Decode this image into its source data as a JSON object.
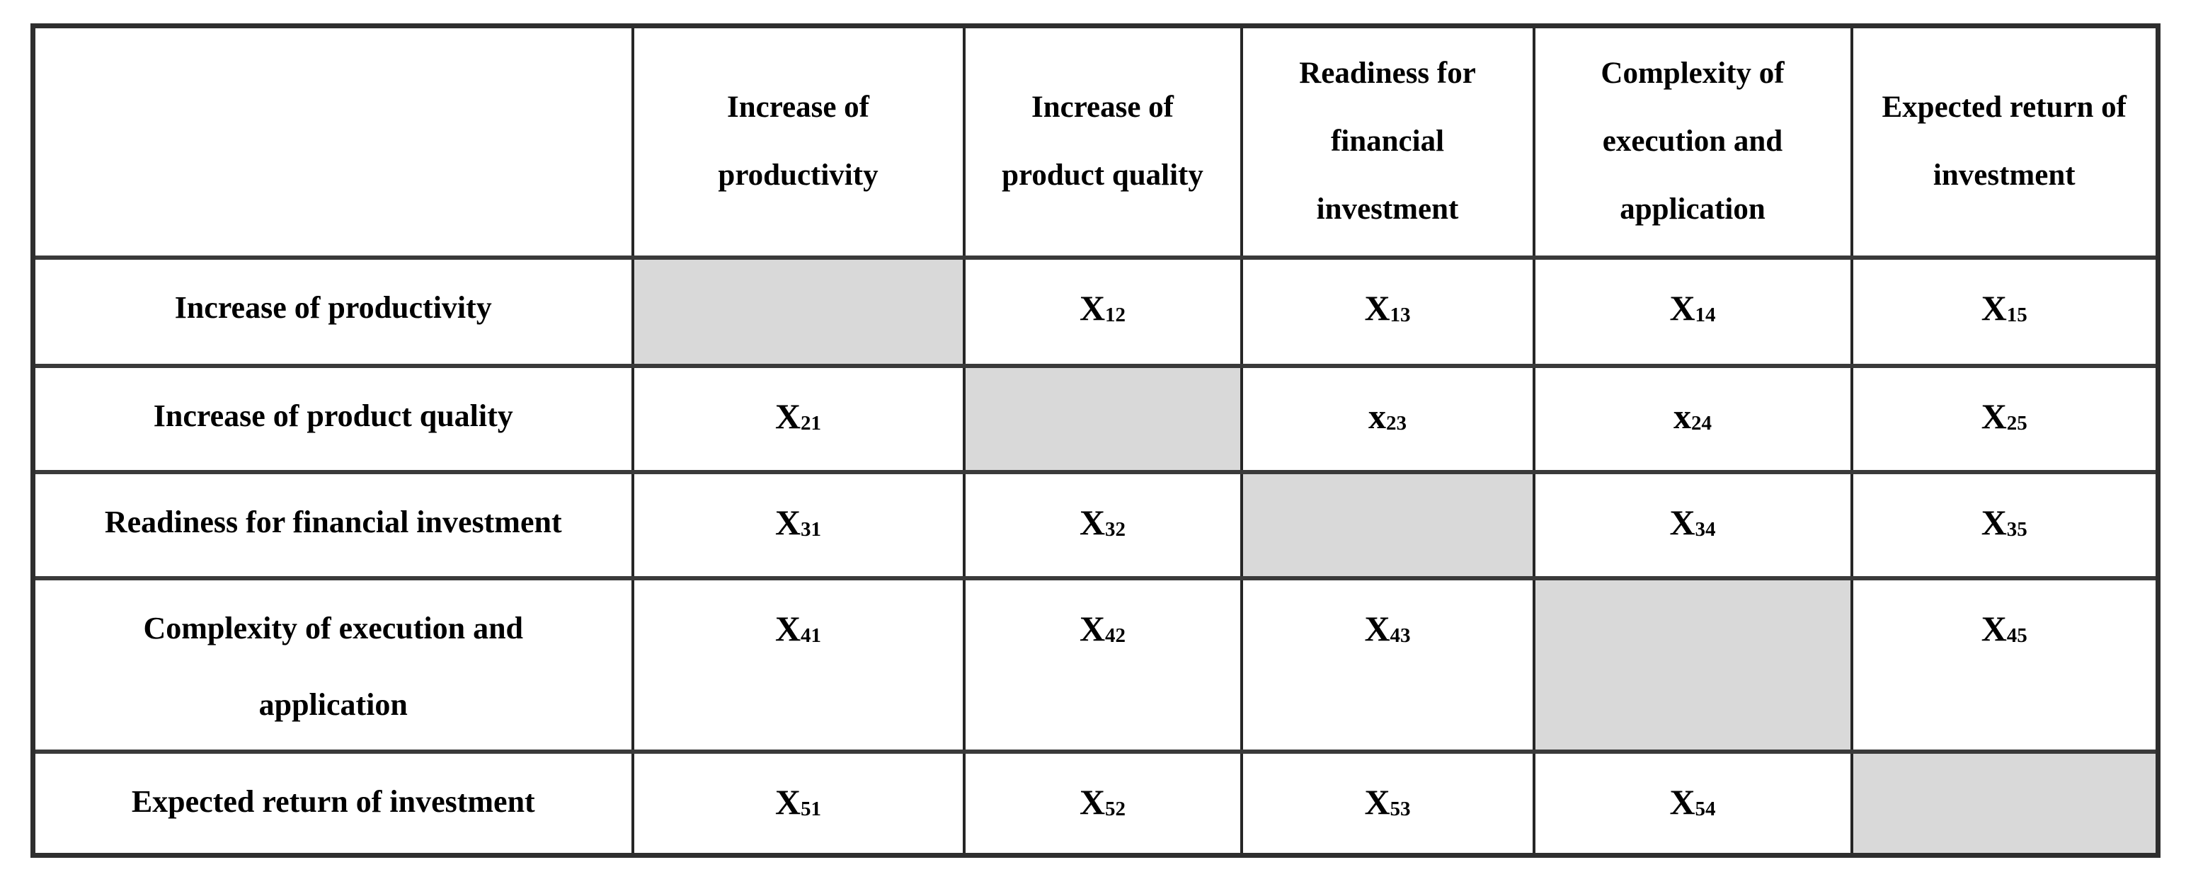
{
  "table": {
    "corner_label": "",
    "column_headers": [
      "Increase of productivity",
      "Increase of product quality",
      "Readiness for financial investment",
      "Complexity of execution and application",
      "Expected return of investment"
    ],
    "rows": [
      {
        "label": "Increase of productivity",
        "cells": [
          {
            "type": "shaded"
          },
          {
            "type": "var",
            "base": "X",
            "sub": "12"
          },
          {
            "type": "var",
            "base": "X",
            "sub": "13"
          },
          {
            "type": "var",
            "base": "X",
            "sub": "14"
          },
          {
            "type": "var",
            "base": "X",
            "sub": "15"
          }
        ]
      },
      {
        "label": "Increase of product quality",
        "cells": [
          {
            "type": "var",
            "base": "X",
            "sub": "21"
          },
          {
            "type": "shaded"
          },
          {
            "type": "var",
            "base": "x",
            "sub": "23"
          },
          {
            "type": "var",
            "base": "x",
            "sub": "24"
          },
          {
            "type": "var",
            "base": "X",
            "sub": "25"
          }
        ]
      },
      {
        "label": "Readiness for financial investment",
        "cells": [
          {
            "type": "var",
            "base": "X",
            "sub": "31"
          },
          {
            "type": "var",
            "base": "X",
            "sub": "32"
          },
          {
            "type": "shaded"
          },
          {
            "type": "var",
            "base": "X",
            "sub": "34"
          },
          {
            "type": "var",
            "base": "X",
            "sub": "35"
          }
        ]
      },
      {
        "label": "Complexity of execution and application",
        "cells": [
          {
            "type": "var",
            "base": "X",
            "sub": "41"
          },
          {
            "type": "var",
            "base": "X",
            "sub": "42"
          },
          {
            "type": "var",
            "base": "X",
            "sub": "43"
          },
          {
            "type": "shaded"
          },
          {
            "type": "var",
            "base": "X",
            "sub": "45"
          }
        ]
      },
      {
        "label": "Expected return of investment",
        "cells": [
          {
            "type": "var",
            "base": "X",
            "sub": "51"
          },
          {
            "type": "var",
            "base": "X",
            "sub": "52"
          },
          {
            "type": "var",
            "base": "X",
            "sub": "53"
          },
          {
            "type": "var",
            "base": "X",
            "sub": "54"
          },
          {
            "type": "shaded"
          }
        ]
      }
    ]
  },
  "colors": {
    "page_background": "#ffffff",
    "shaded_cell": "#d9d9d9",
    "grid_line_horizontal": "#3a3a3a",
    "grid_line_vertical": "#262626",
    "text": "#000000"
  }
}
